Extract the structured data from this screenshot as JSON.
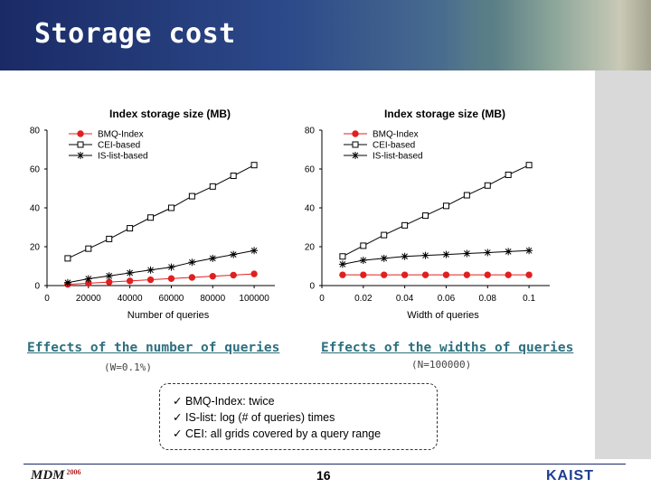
{
  "slide": {
    "title": "Storage cost",
    "page_number": "16",
    "logo_left": "MDM",
    "logo_left_year": "2006",
    "logo_right": "KAIST"
  },
  "captions": {
    "left_main": "Effects of the number of queries",
    "left_sub": "(W=0.1%)",
    "right_main": "Effects of the widths of queries",
    "right_sub": "(N=100000)"
  },
  "notes": {
    "items": [
      "BMQ-Index: twice",
      "IS-list: log (# of queries) times",
      "CEI: all grids covered by a query range"
    ]
  },
  "chart_data": [
    {
      "type": "line",
      "title": "Index storage size (MB)",
      "xlabel": "Number of queries",
      "ylabel": "",
      "xlim": [
        0,
        110000
      ],
      "ylim": [
        0,
        80
      ],
      "xticks": [
        0,
        20000,
        40000,
        60000,
        80000,
        100000
      ],
      "xtick_labels": [
        "0",
        "20000",
        "40000",
        "60000",
        "80000",
        "100000"
      ],
      "yticks": [
        0,
        20,
        40,
        60,
        80
      ],
      "legend": "top-left",
      "x": [
        10000,
        20000,
        30000,
        40000,
        50000,
        60000,
        70000,
        80000,
        90000,
        100000
      ],
      "series": [
        {
          "name": "BMQ-Index",
          "marker": "circle",
          "color": "#e02020",
          "values": [
            0.6,
            1.2,
            1.8,
            2.4,
            3.0,
            3.6,
            4.2,
            4.8,
            5.4,
            6.0
          ]
        },
        {
          "name": "CEI-based",
          "marker": "square",
          "color": "#000000",
          "values": [
            14,
            19,
            24,
            29.5,
            35,
            40,
            46,
            51,
            56.5,
            62
          ]
        },
        {
          "name": "IS-list-based",
          "marker": "asterisk",
          "color": "#000000",
          "values": [
            1.5,
            3.5,
            5,
            6.5,
            8,
            9.5,
            12,
            14,
            16,
            18
          ]
        }
      ]
    },
    {
      "type": "line",
      "title": "Index storage size (MB)",
      "xlabel": "Width of queries",
      "ylabel": "",
      "xlim": [
        0,
        0.11
      ],
      "ylim": [
        0,
        80
      ],
      "xticks": [
        0,
        0.02,
        0.04,
        0.06,
        0.08,
        0.1
      ],
      "xtick_labels": [
        "0",
        "0.02",
        "0.04",
        "0.06",
        "0.08",
        "0.1"
      ],
      "yticks": [
        0,
        20,
        40,
        60,
        80
      ],
      "legend": "top-left",
      "x": [
        0.01,
        0.02,
        0.03,
        0.04,
        0.05,
        0.06,
        0.07,
        0.08,
        0.09,
        0.1
      ],
      "series": [
        {
          "name": "BMQ-Index",
          "marker": "circle",
          "color": "#e02020",
          "values": [
            5.5,
            5.5,
            5.5,
            5.5,
            5.5,
            5.5,
            5.5,
            5.5,
            5.5,
            5.5
          ]
        },
        {
          "name": "CEI-based",
          "marker": "square",
          "color": "#000000",
          "values": [
            15,
            20.5,
            26,
            31,
            36,
            41,
            46.5,
            51.5,
            57,
            62
          ]
        },
        {
          "name": "IS-list-based",
          "marker": "asterisk",
          "color": "#000000",
          "values": [
            11,
            13,
            14,
            15,
            15.5,
            16,
            16.5,
            17,
            17.5,
            18
          ]
        }
      ]
    }
  ]
}
